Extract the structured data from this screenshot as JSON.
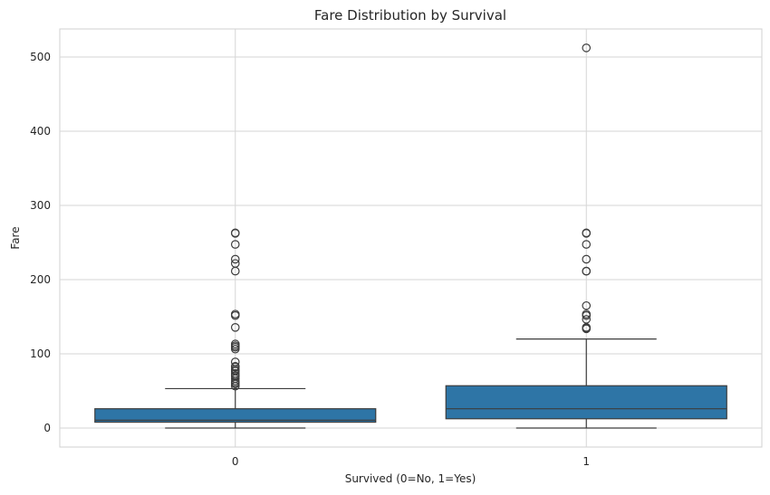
{
  "chart_data": {
    "type": "box",
    "title": "Fare Distribution by Survival",
    "xlabel": "Survived (0=No, 1=Yes)",
    "ylabel": "Fare",
    "categories": [
      "0",
      "1"
    ],
    "ylim": [
      -25,
      538
    ],
    "yticks": [
      0,
      100,
      200,
      300,
      400,
      500
    ],
    "grid": true,
    "box_color": "#2e75a6",
    "line_color": "#3d3d3d",
    "boxes": [
      {
        "category": "0",
        "whisker_low": 0,
        "q1": 7.9,
        "median": 10.5,
        "q3": 26,
        "whisker_high": 53.1,
        "outliers": [
          56.5,
          59.4,
          61.2,
          63.4,
          66.6,
          69.6,
          71,
          73.5,
          76.7,
          77.3,
          79.2,
          82.2,
          83.2,
          89.1,
          106.4,
          108.9,
          110.9,
          113.3,
          135.6,
          151.6,
          153.5,
          211.5,
          221.8,
          227.5,
          247.5,
          262.4,
          263
        ]
      },
      {
        "category": "1",
        "whisker_low": 0,
        "q1": 12.5,
        "median": 26,
        "q3": 57,
        "whisker_high": 120,
        "outliers": [
          133.7,
          134.5,
          135.6,
          146.5,
          151.6,
          153.5,
          164.9,
          211.3,
          211.5,
          227.5,
          247.5,
          262.4,
          263,
          512.3
        ]
      }
    ]
  }
}
